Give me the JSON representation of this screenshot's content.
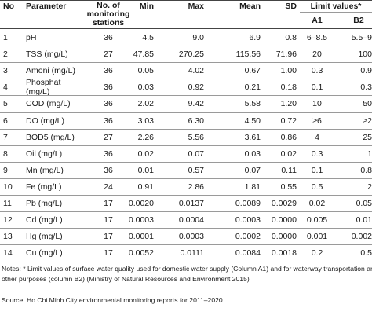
{
  "table": {
    "headers": {
      "no": "No",
      "parameter": "Parameter",
      "stations": "No. of monitoring stations",
      "min": "Min",
      "max": "Max",
      "mean": "Mean",
      "sd": "SD",
      "limit_values": "Limit values*",
      "a1": "A1",
      "b2": "B2"
    },
    "rows": [
      {
        "no": "1",
        "parameter": "pH",
        "stations": "36",
        "min": "4.5",
        "max": "9.0",
        "mean": "6.9",
        "sd": "0.8",
        "a1": "6–8.5",
        "b2": "5.5–9"
      },
      {
        "no": "2",
        "parameter": "TSS (mg/L)",
        "stations": "27",
        "min": "47.85",
        "max": "270.25",
        "mean": "115.56",
        "sd": "71.96",
        "a1": "20",
        "b2": "100"
      },
      {
        "no": "3",
        "parameter": "Amoni (mg/L)",
        "stations": "36",
        "min": "0.05",
        "max": "4.02",
        "mean": "0.67",
        "sd": "1.00",
        "a1": "0.3",
        "b2": "0.9"
      },
      {
        "no": "4",
        "parameter": "Phosphat (mg/L)",
        "stations": "36",
        "min": "0.03",
        "max": "0.92",
        "mean": "0.21",
        "sd": "0.18",
        "a1": "0.1",
        "b2": "0.3"
      },
      {
        "no": "5",
        "parameter": "COD (mg/L)",
        "stations": "36",
        "min": "2.02",
        "max": "9.42",
        "mean": "5.58",
        "sd": "1.20",
        "a1": "10",
        "b2": "50"
      },
      {
        "no": "6",
        "parameter": "DO (mg/L)",
        "stations": "36",
        "min": "3.03",
        "max": "6.30",
        "mean": "4.50",
        "sd": "0.72",
        "a1": "≥6",
        "b2": "≥2"
      },
      {
        "no": "7",
        "parameter": "BOD5 (mg/L)",
        "stations": "27",
        "min": "2.26",
        "max": "5.56",
        "mean": "3.61",
        "sd": "0.86",
        "a1": "4",
        "b2": "25"
      },
      {
        "no": "8",
        "parameter": "Oil (mg/L)",
        "stations": "36",
        "min": "0.02",
        "max": "0.07",
        "mean": "0.03",
        "sd": "0.02",
        "a1": "0.3",
        "b2": "1"
      },
      {
        "no": "9",
        "parameter": "Mn (mg/L)",
        "stations": "36",
        "min": "0.01",
        "max": "0.57",
        "mean": "0.07",
        "sd": "0.11",
        "a1": "0.1",
        "b2": "0.8"
      },
      {
        "no": "10",
        "parameter": "Fe (mg/L)",
        "stations": "24",
        "min": "0.91",
        "max": "2.86",
        "mean": "1.81",
        "sd": "0.55",
        "a1": "0.5",
        "b2": "2"
      },
      {
        "no": "11",
        "parameter": "Pb (mg/L)",
        "stations": "17",
        "min": "0.0020",
        "max": "0.0137",
        "mean": "0.0089",
        "sd": "0.0029",
        "a1": "0.02",
        "b2": "0.05"
      },
      {
        "no": "12",
        "parameter": "Cd (mg/L)",
        "stations": "17",
        "min": "0.0003",
        "max": "0.0004",
        "mean": "0.0003",
        "sd": "0.0000",
        "a1": "0.005",
        "b2": "0.01"
      },
      {
        "no": "13",
        "parameter": "Hg (mg/L)",
        "stations": "17",
        "min": "0.0001",
        "max": "0.0003",
        "mean": "0.0002",
        "sd": "0.0000",
        "a1": "0.001",
        "b2": "0.002"
      },
      {
        "no": "14",
        "parameter": "Cu (mg/L)",
        "stations": "17",
        "min": "0.0052",
        "max": "0.0111",
        "mean": "0.0084",
        "sd": "0.0018",
        "a1": "0.2",
        "b2": "0.5"
      }
    ]
  },
  "notes": {
    "line1": "Notes: * Limit values of surface water quality used for domestic water supply (Column A1) and for waterway transportation and",
    "line2": "other purposes (column B2) (Ministry of Natural Resources and Environment 2015)",
    "source": "Source: Ho Chi Minh City environmental monitoring reports for 2011–2020"
  }
}
